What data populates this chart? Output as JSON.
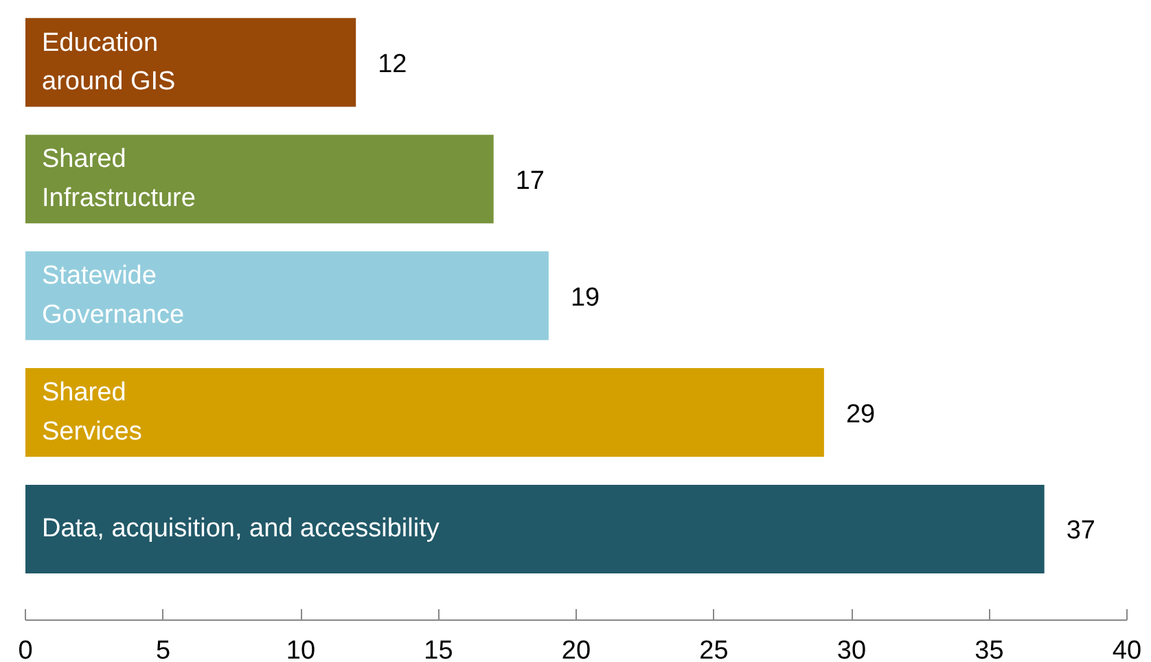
{
  "chart_data": {
    "type": "bar",
    "orientation": "horizontal",
    "categories": [
      "Education\naround GIS",
      "Shared\nInfrastructure",
      "Statewide\nGovernance",
      "Shared\nServices",
      "Data, acquisition, and accessibility"
    ],
    "values": [
      12,
      17,
      19,
      29,
      37
    ],
    "colors": [
      "#984807",
      "#77933c",
      "#93cddd",
      "#d4a000",
      "#215968"
    ],
    "xlim": [
      0,
      40
    ],
    "xticks": [
      0,
      5,
      10,
      15,
      20,
      25,
      30,
      35,
      40
    ],
    "data_labels": true,
    "tick_labels": "x"
  }
}
